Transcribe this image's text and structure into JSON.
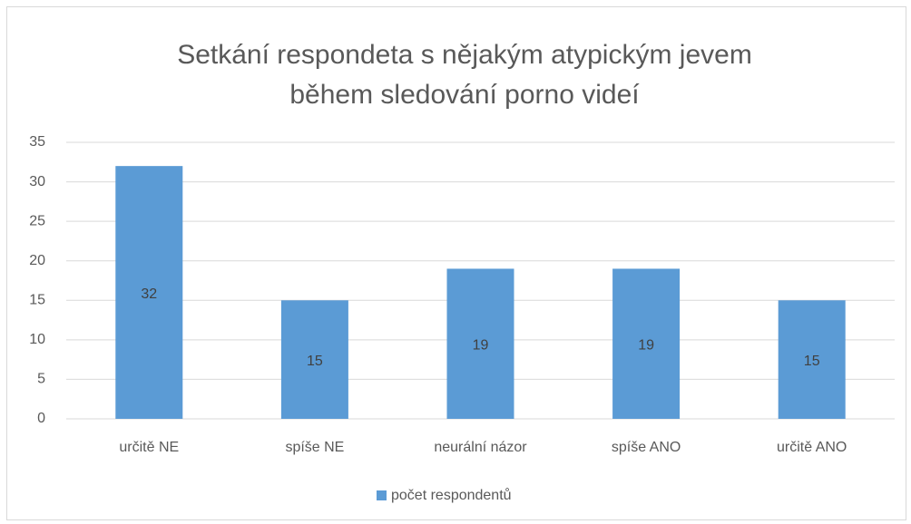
{
  "chart_data": {
    "type": "bar",
    "title": [
      "Setkání respondeta s nějakým atypickým jevem",
      "během sledování porno videí"
    ],
    "categories": [
      "určitě NE",
      "spíše NE",
      "neurální názor",
      "spíše ANO",
      "určitě ANO"
    ],
    "series": [
      {
        "name": "počet respondentů",
        "color": "#5b9bd5",
        "values": [
          32,
          15,
          19,
          19,
          15
        ]
      }
    ],
    "ylim": [
      0,
      35
    ],
    "yticks": [
      0,
      5,
      10,
      15,
      20,
      25,
      30,
      35
    ],
    "grid": true,
    "legend": "bottom"
  }
}
